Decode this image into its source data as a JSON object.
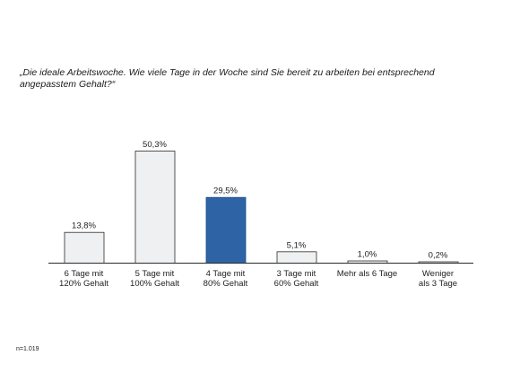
{
  "chart_data": {
    "type": "bar",
    "title": "„Die ideale Arbeitswoche. Wie viele Tage in der Woche sind Sie bereit zu arbeiten bei entsprechend angepasstem Gehalt?“",
    "categories": [
      [
        "6 Tage mit",
        "120% Gehalt"
      ],
      [
        "5 Tage mit",
        "100% Gehalt"
      ],
      [
        "4 Tage mit",
        "80% Gehalt"
      ],
      [
        "3 Tage mit",
        "60% Gehalt"
      ],
      [
        "Mehr als 6 Tage"
      ],
      [
        "Weniger",
        "als 3 Tage"
      ]
    ],
    "values": [
      13.8,
      50.3,
      29.5,
      5.1,
      1.0,
      0.2
    ],
    "value_labels": [
      "13,8%",
      "50,3%",
      "29,5%",
      "5,1%",
      "1,0%",
      "0,2%"
    ],
    "highlight_index": 2,
    "colors": {
      "bar_fill": "#eef0f1",
      "bar_stroke": "#2b2b2b",
      "highlight_fill": "#2e63a6",
      "highlight_stroke": "#1d4a84",
      "axis": "#2b2b2b"
    },
    "ylim": [
      0,
      50.3
    ],
    "grid": false,
    "xlabel": "",
    "ylabel": ""
  },
  "footer": {
    "sample_size": "n=1.019"
  }
}
